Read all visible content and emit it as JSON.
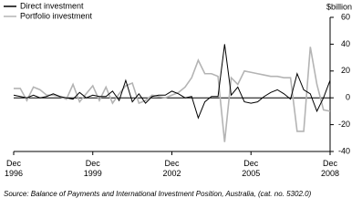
{
  "chart_data": {
    "type": "line",
    "y_label": "$billion",
    "source": "Source: Balance of Payments and International Investment Position, Australia, (cat. no. 5302.0)",
    "categories": [
      "Dec\n1996",
      null,
      null,
      null,
      null,
      null,
      null,
      null,
      null,
      null,
      null,
      null,
      "Dec\n1999",
      null,
      null,
      null,
      null,
      null,
      null,
      null,
      null,
      null,
      null,
      null,
      "Dec\n2002",
      null,
      null,
      null,
      null,
      null,
      null,
      null,
      null,
      null,
      null,
      null,
      "Dec\n2005",
      null,
      null,
      null,
      null,
      null,
      null,
      null,
      null,
      null,
      null,
      null,
      "Dec\n2008"
    ],
    "series": [
      {
        "name": "Direct investment",
        "color": "#000000",
        "values": [
          2,
          1,
          0,
          2,
          0,
          1,
          3,
          1,
          0,
          -1,
          4,
          0,
          2,
          1,
          1,
          5,
          -2,
          13,
          -3,
          3,
          -4,
          1,
          2,
          2,
          5,
          3,
          0,
          1,
          -15,
          -3,
          1,
          1,
          40,
          2,
          8,
          -3,
          -4,
          -3,
          1,
          4,
          6,
          3,
          -1,
          18,
          6,
          3,
          -10,
          0,
          13
        ]
      },
      {
        "name": "Portfolio investment",
        "color": "#b4b4b4",
        "values": [
          7,
          7,
          -2,
          8,
          6,
          2,
          2,
          1,
          -1,
          10,
          -3,
          3,
          9,
          -2,
          8,
          -4,
          3,
          9,
          11,
          -4,
          -2,
          2,
          1,
          0,
          2,
          4,
          8,
          15,
          28,
          18,
          18,
          16,
          -33,
          15,
          10,
          20,
          19,
          18,
          17,
          16,
          16,
          15,
          15,
          -25,
          -25,
          38,
          10,
          -9,
          -10
        ]
      }
    ],
    "ylim": [
      -40,
      60
    ],
    "yticks": [
      60,
      40,
      20,
      0,
      -20,
      -40
    ],
    "legend": "top-left"
  }
}
